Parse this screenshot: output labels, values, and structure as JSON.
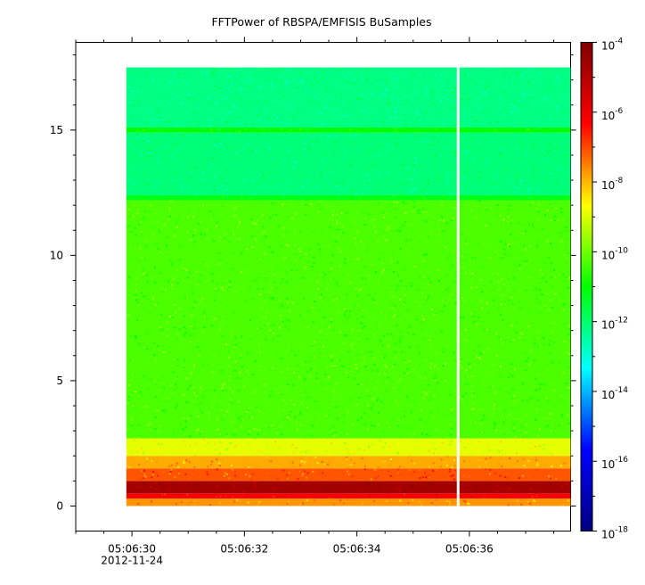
{
  "chart_data": {
    "type": "heatmap",
    "title": "FFTPower of RBSPA/EMFISIS  BuSamples",
    "xlabel": "",
    "ylabel": "",
    "x_range_seconds": [
      "05:06:29",
      "05:06:37.8"
    ],
    "x_ticks": [
      {
        "time": "05:06:30",
        "label": "05:06:30",
        "date": "2012-11-24"
      },
      {
        "time": "05:06:32",
        "label": "05:06:32",
        "date": ""
      },
      {
        "time": "05:06:34",
        "label": "05:06:34",
        "date": ""
      },
      {
        "time": "05:06:36",
        "label": "05:06:36",
        "date": ""
      }
    ],
    "x_minor_tick_step_seconds": 0.5,
    "y_ticks": [
      0,
      5,
      10,
      15
    ],
    "ylim": [
      -1,
      18.5
    ],
    "data_extent": {
      "t_start": "05:06:29.9",
      "t_end": "05:06:37.8",
      "y_min": 0,
      "y_max": 17.5
    },
    "data_gap": {
      "t": "05:06:35.8"
    },
    "colorbar": {
      "scale": "log",
      "min": 1e-18,
      "max": 0.0001,
      "tick_exponents": [
        -4,
        -6,
        -8,
        -10,
        -12,
        -14,
        -16,
        -18
      ],
      "tick_base": "10",
      "colormap": [
        "#00007f",
        "#0000ff",
        "#00ffff",
        "#00ff00",
        "#ffff00",
        "#ff0000",
        "#7f0000"
      ]
    },
    "bands": [
      {
        "y0": 0.0,
        "y1": 0.3,
        "level_log10": -7.7
      },
      {
        "y0": 0.3,
        "y1": 0.5,
        "level_log10": -6.2
      },
      {
        "y0": 0.5,
        "y1": 1.0,
        "level_log10": -4.7
      },
      {
        "y0": 1.0,
        "y1": 1.5,
        "level_log10": -7.1
      },
      {
        "y0": 1.5,
        "y1": 2.0,
        "level_log10": -7.9
      },
      {
        "y0": 2.0,
        "y1": 2.7,
        "level_log10": -8.9
      },
      {
        "y0": 2.7,
        "y1": 12.2,
        "level_log10": -10.3
      },
      {
        "y0": 12.2,
        "y1": 12.4,
        "level_log10": -11.2
      },
      {
        "y0": 12.4,
        "y1": 14.9,
        "level_log10": -12.1
      },
      {
        "y0": 14.9,
        "y1": 15.1,
        "level_log10": -11.0
      },
      {
        "y0": 15.1,
        "y1": 17.5,
        "level_log10": -12.2
      }
    ]
  }
}
